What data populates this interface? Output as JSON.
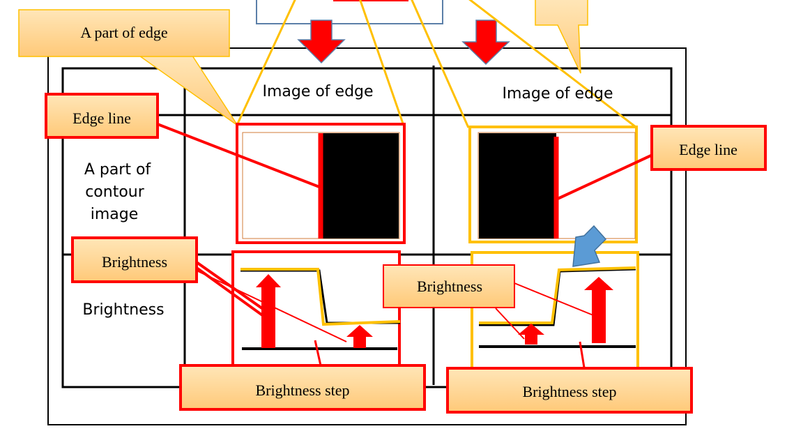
{
  "callouts": {
    "part_of_edge": "A part of edge",
    "edge_line_left": "Edge line",
    "edge_line_right": "Edge line",
    "brightness_left": "Brightness",
    "brightness_center": "Brightness",
    "step_left": "Brightness step",
    "step_right": "Brightness step"
  },
  "table": {
    "col_header_left": "Image of edge",
    "col_header_right": "Image of edge",
    "row_label_contour": [
      "A part of",
      "contour",
      "image"
    ],
    "row_label_brightness": "Brightness"
  },
  "colors": {
    "red": "#ff0000",
    "orange": "#ffc000",
    "callout_fill": "#ffd591",
    "blue_arrow": "#5b9bd5",
    "frame": "#000000"
  }
}
